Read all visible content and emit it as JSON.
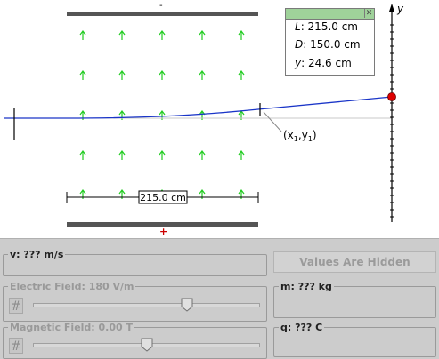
{
  "plates": {
    "top_sign": "-",
    "bottom_sign": "+"
  },
  "beam_label": "(x₁,y₁)",
  "beam_label_parts": {
    "open": "(x",
    "sub1": "1",
    "comma": ",y",
    "sub2": "1",
    "close": ")"
  },
  "axis_label": "y",
  "ruler_label": "215.0 cm",
  "info_box": {
    "rows": [
      {
        "var": "L",
        "value": ": 215.0 cm"
      },
      {
        "var": "D",
        "value": ": 150.0 cm"
      },
      {
        "var": "y",
        "value": ": 24.6 cm"
      }
    ]
  },
  "controls": {
    "velocity": {
      "label": "v: ??? m/s"
    },
    "values_hidden_button": "Values Are Hidden",
    "electric_field": {
      "label": "Electric Field: 180 V/m",
      "slider_fraction": 0.68
    },
    "magnetic_field": {
      "label": "Magnetic Field: 0.00 T",
      "slider_fraction": 0.5
    },
    "mass": {
      "label": "m: ??? kg"
    },
    "charge": {
      "label": "q: ??? C"
    },
    "hash_symbol": "#"
  },
  "colors": {
    "field_arrow": "#22cc22",
    "particle": "#dd0000",
    "beam": "#1a35c8",
    "plate": "#555555",
    "infobox_title": "#9fd29a",
    "panel_bg": "#cccccc"
  },
  "icons": {
    "arrow": "up-arrow-icon",
    "close": "close-icon",
    "hash": "hash-icon",
    "thumb": "slider-thumb-icon"
  }
}
